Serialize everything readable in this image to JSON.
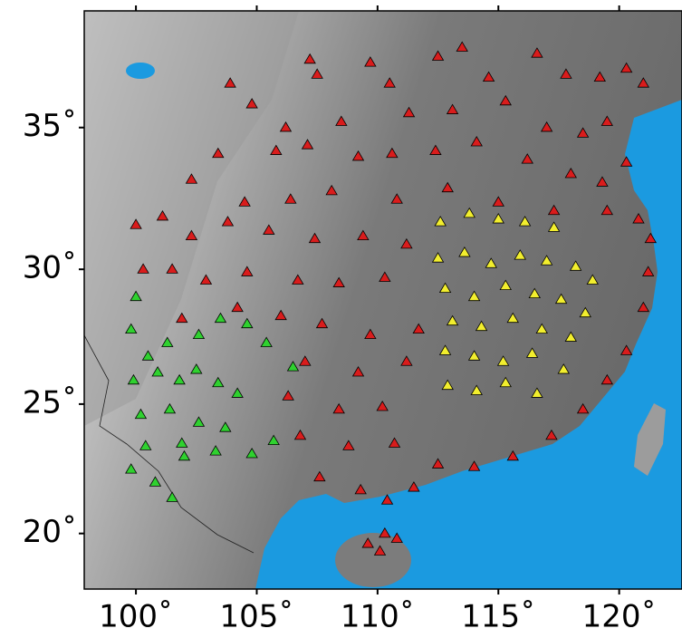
{
  "chart_data": {
    "type": "scatter",
    "xlim": [
      97.86,
      122.6
    ],
    "ylim": [
      17.8,
      38.9
    ],
    "xticks": [
      {
        "value": 100,
        "label": "100˚"
      },
      {
        "value": 105,
        "label": "105˚"
      },
      {
        "value": 110,
        "label": "110˚"
      },
      {
        "value": 115,
        "label": "115˚"
      },
      {
        "value": 120,
        "label": "120˚"
      }
    ],
    "yticks": [
      {
        "value": 20,
        "label": "20˚"
      },
      {
        "value": 25,
        "label": "25˚"
      },
      {
        "value": 30,
        "label": "30˚"
      },
      {
        "value": 35,
        "label": "35˚"
      }
    ],
    "series": [
      {
        "color": "#d91c1c",
        "x": [
          107.2,
          107.5,
          109.7,
          110.5,
          112.5,
          113.5,
          114.6,
          116.6,
          117.8,
          119.2,
          120.3,
          121.0,
          108.5,
          111.3,
          113.1,
          115.3,
          117.0,
          118.5,
          119.5,
          106.2,
          104.8,
          103.9,
          105.8,
          107.1,
          109.2,
          110.6,
          112.4,
          114.1,
          116.2,
          118.0,
          119.3,
          120.3,
          103.4,
          102.3,
          104.5,
          106.4,
          108.1,
          110.8,
          112.9,
          115.0,
          117.3,
          119.5,
          120.8,
          121.3,
          100.0,
          101.1,
          102.3,
          103.8,
          105.5,
          107.4,
          109.4,
          111.2,
          100.3,
          101.5,
          102.9,
          104.6,
          106.7,
          108.4,
          110.3,
          101.9,
          104.2,
          106.0,
          107.7,
          109.7,
          111.7,
          107.0,
          109.2,
          111.2,
          106.3,
          108.4,
          110.2,
          106.8,
          108.8,
          110.7,
          112.5,
          114.0,
          115.6,
          117.2,
          118.5,
          119.5,
          120.3,
          121.0,
          121.2,
          107.6,
          109.3,
          110.4,
          111.5,
          110.3,
          109.6,
          110.8,
          110.1
        ],
        "y": [
          37.3,
          36.8,
          37.2,
          36.5,
          37.4,
          37.7,
          36.7,
          37.5,
          36.8,
          36.7,
          37.0,
          36.5,
          35.2,
          35.5,
          35.6,
          35.9,
          35.0,
          34.8,
          35.2,
          35.0,
          35.8,
          36.5,
          34.2,
          34.4,
          34.0,
          34.1,
          34.2,
          34.5,
          33.9,
          33.4,
          33.1,
          33.8,
          34.1,
          33.2,
          32.4,
          32.5,
          32.8,
          32.5,
          32.9,
          32.4,
          32.1,
          32.1,
          31.8,
          31.1,
          31.6,
          31.9,
          31.2,
          31.7,
          31.4,
          31.1,
          31.2,
          30.9,
          30.0,
          30.0,
          29.6,
          29.9,
          29.6,
          29.5,
          29.7,
          28.2,
          28.6,
          28.3,
          28.0,
          27.6,
          27.8,
          26.6,
          26.2,
          26.6,
          25.3,
          24.8,
          24.9,
          23.8,
          23.4,
          23.5,
          22.7,
          22.6,
          23.0,
          23.8,
          24.8,
          25.9,
          27.0,
          28.6,
          29.9,
          22.2,
          21.7,
          21.3,
          21.8,
          20.0,
          19.6,
          19.8,
          19.3
        ]
      },
      {
        "color": "#f2ee2e",
        "x": [
          112.6,
          113.8,
          115.0,
          116.1,
          117.3,
          112.5,
          113.6,
          114.7,
          115.9,
          117.0,
          118.2,
          112.8,
          114.0,
          115.3,
          116.5,
          117.6,
          113.1,
          114.3,
          115.6,
          116.8,
          118.0,
          112.8,
          114.0,
          115.2,
          116.4,
          117.7,
          112.9,
          114.1,
          115.3,
          116.6,
          118.6,
          118.9
        ],
        "y": [
          31.7,
          32.0,
          31.8,
          31.7,
          31.5,
          30.4,
          30.6,
          30.2,
          30.5,
          30.3,
          30.1,
          29.3,
          29.0,
          29.4,
          29.1,
          28.9,
          28.1,
          27.9,
          28.2,
          27.8,
          27.5,
          27.0,
          26.8,
          26.6,
          26.9,
          26.3,
          25.7,
          25.5,
          25.8,
          25.4,
          28.4,
          29.6
        ]
      },
      {
        "color": "#2fd12f",
        "x": [
          100.0,
          99.8,
          100.5,
          101.3,
          102.6,
          103.5,
          104.6,
          105.4,
          99.9,
          100.9,
          101.8,
          102.5,
          103.4,
          104.2,
          100.2,
          101.4,
          102.6,
          103.7,
          100.4,
          101.9,
          103.3,
          104.8,
          105.7,
          99.8,
          100.8,
          101.5,
          106.5,
          102.0
        ],
        "y": [
          29.0,
          27.8,
          26.8,
          27.3,
          27.6,
          28.2,
          28.0,
          27.3,
          25.9,
          26.2,
          25.9,
          26.3,
          25.8,
          25.4,
          24.6,
          24.8,
          24.3,
          24.1,
          23.4,
          23.5,
          23.2,
          23.1,
          23.6,
          22.5,
          22.0,
          21.4,
          26.4,
          23.0
        ]
      }
    ]
  }
}
